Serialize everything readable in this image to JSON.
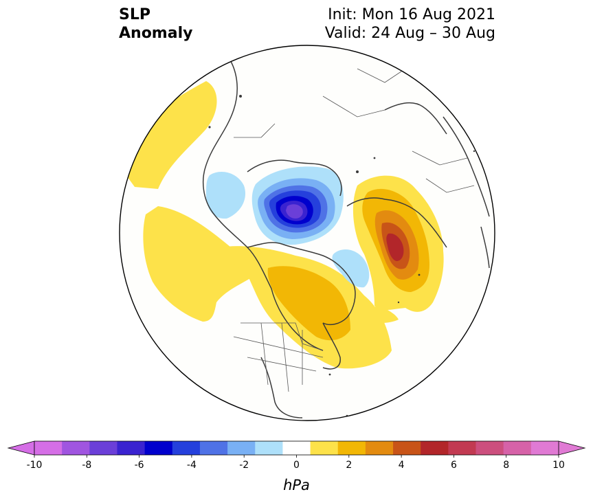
{
  "title": {
    "left_line1": "SLP",
    "left_line2": "Anomaly",
    "right_line1": "Init: Mon 16 Aug 2021",
    "right_line2": "Valid: 24 Aug – 30 Aug"
  },
  "map": {
    "projection": "north-polar-stereographic",
    "field": "SLP anomaly",
    "features": [
      {
        "name": "low-greenland-sea",
        "sign": "negative",
        "peak_hpa": -9
      },
      {
        "name": "low-alaska",
        "sign": "negative",
        "peak_hpa": -2
      },
      {
        "name": "low-hudson-bay",
        "sign": "negative",
        "peak_hpa": -2
      },
      {
        "name": "high-central-siberia",
        "sign": "positive",
        "peak_hpa": 7
      },
      {
        "name": "high-eastern-europe",
        "sign": "positive",
        "peak_hpa": 3
      },
      {
        "name": "high-north-pacific",
        "sign": "positive",
        "peak_hpa": 2
      },
      {
        "name": "high-northern-europe",
        "sign": "positive",
        "peak_hpa": 2
      }
    ]
  },
  "colorbar": {
    "unit": "hPa",
    "ticks": [
      "-10",
      "-8",
      "-6",
      "-4",
      "-2",
      "0",
      "2",
      "4",
      "6",
      "8",
      "10"
    ],
    "levels": [
      -10,
      -9,
      -8,
      -7,
      -6,
      -5,
      -4,
      -3,
      -2,
      -1,
      1,
      2,
      3,
      4,
      5,
      6,
      7,
      8,
      9,
      10
    ],
    "colors": [
      "#d56ee6",
      "#a055e0",
      "#6b3fd8",
      "#3a23d0",
      "#0000cd",
      "#2540dc",
      "#4f72e6",
      "#79b0f4",
      "#aee0fa",
      "#ffffff",
      "#fde24a",
      "#f2b705",
      "#e38b10",
      "#c85418",
      "#b2262a",
      "#c23a52",
      "#cc4f7e",
      "#d662a8",
      "#e07ad4"
    ],
    "extend_low_color": "#d56ee6",
    "extend_high_color": "#e07ad4"
  }
}
